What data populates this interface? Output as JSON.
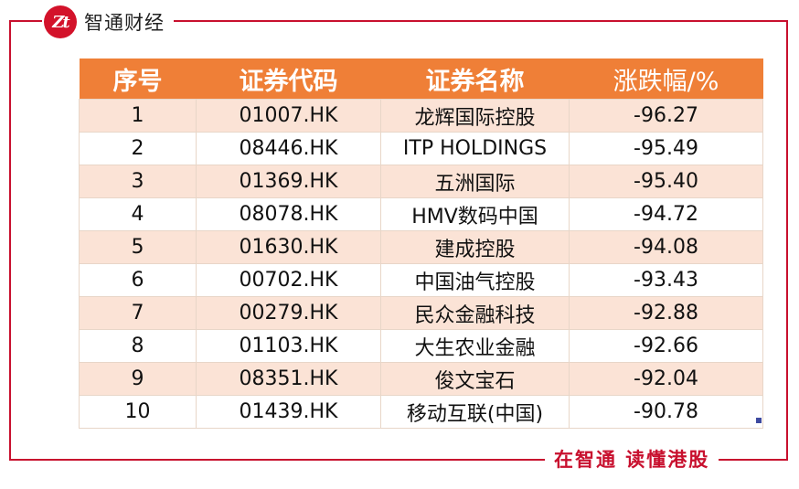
{
  "brand": {
    "logo_text": "Zt",
    "name": "智通财经"
  },
  "slogan": "在智通 读懂港股",
  "table": {
    "headers": [
      "序号",
      "证券代码",
      "证券名称",
      "涨跌幅/%"
    ],
    "rows": [
      [
        "1",
        "01007.HK",
        "龙辉国际控股",
        "-96.27"
      ],
      [
        "2",
        "08446.HK",
        "ITP HOLDINGS",
        "-95.49"
      ],
      [
        "3",
        "01369.HK",
        "五洲国际",
        "-95.40"
      ],
      [
        "4",
        "08078.HK",
        "HMV数码中国",
        "-94.72"
      ],
      [
        "5",
        "01630.HK",
        "建成控股",
        "-94.08"
      ],
      [
        "6",
        "00702.HK",
        "中国油气控股",
        "-93.43"
      ],
      [
        "7",
        "00279.HK",
        "民众金融科技",
        "-92.88"
      ],
      [
        "8",
        "01103.HK",
        "大生农业金融",
        "-92.66"
      ],
      [
        "9",
        "08351.HK",
        "俊文宝石",
        "-92.04"
      ],
      [
        "10",
        "01439.HK",
        "移动互联(中国)",
        "-90.78"
      ]
    ]
  },
  "colors": {
    "frame": "#c8102e",
    "header_bg": "#ef7f37",
    "stripe_bg": "#fbe3d6"
  }
}
